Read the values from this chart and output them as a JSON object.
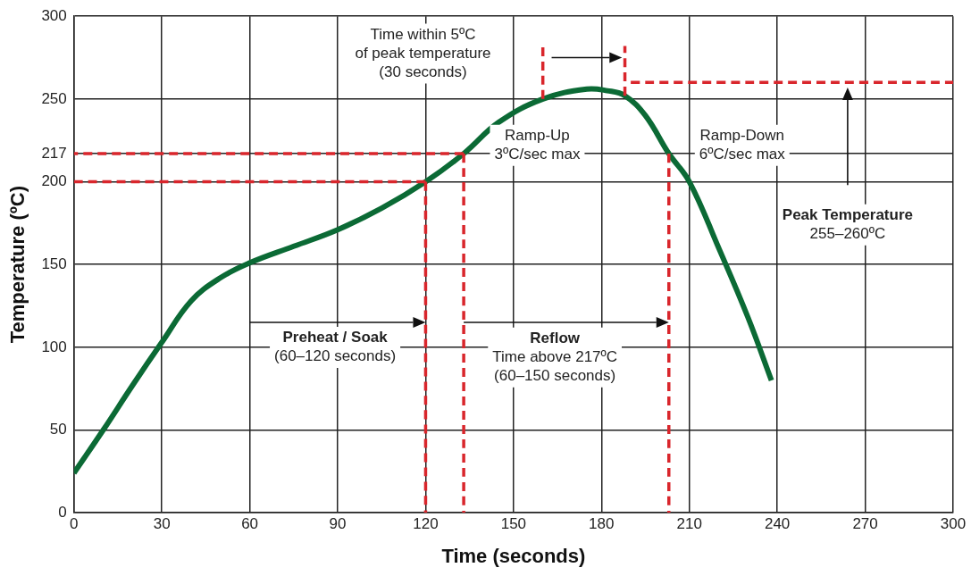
{
  "chart_data": {
    "type": "line",
    "xlabel": "Time (seconds)",
    "ylabel": "Temperature (ºC)",
    "xlim": [
      0,
      300
    ],
    "xticks": [
      0,
      30,
      60,
      90,
      120,
      150,
      180,
      210,
      240,
      270,
      300
    ],
    "ylim": [
      0,
      300
    ],
    "yticks": [
      0,
      50,
      100,
      150,
      200,
      217,
      250,
      300
    ],
    "grid": true,
    "legend": false,
    "marker": "none",
    "line_style": "solid",
    "series": [
      {
        "color": "#0b6a35",
        "x": [
          0,
          10,
          20,
          30,
          40,
          50,
          60,
          75,
          90,
          105,
          120,
          133,
          145,
          160,
          175,
          182,
          188,
          195,
          203,
          210,
          220,
          230,
          238
        ],
        "values": [
          24,
          50,
          77,
          103,
          128,
          142,
          151,
          161,
          171,
          184,
          200,
          217,
          236,
          250,
          256,
          255,
          252,
          240,
          217,
          200,
          160,
          118,
          80
        ]
      },
      {
        "color": "#d9262c",
        "line_style": "dashed",
        "x": [
          120,
          0
        ],
        "values": [
          200,
          200
        ]
      },
      {
        "color": "#d9262c",
        "line_style": "dashed",
        "x": [
          133,
          0
        ],
        "values": [
          217,
          217
        ]
      },
      {
        "color": "#d9262c",
        "line_style": "dashed",
        "x": [
          190,
          300
        ],
        "values": [
          260,
          260
        ]
      },
      {
        "color": "#d9262c",
        "line_style": "dashed",
        "x": [
          120,
          120
        ],
        "values": [
          200,
          0
        ]
      },
      {
        "color": "#d9262c",
        "line_style": "dashed",
        "x": [
          133,
          133
        ],
        "values": [
          217,
          0
        ]
      },
      {
        "color": "#d9262c",
        "line_style": "dashed",
        "x": [
          203,
          203
        ],
        "values": [
          217,
          0
        ]
      },
      {
        "color": "#d9262c",
        "line_style": "dashed",
        "x": [
          160,
          160
        ],
        "values": [
          250,
          282
        ]
      },
      {
        "color": "#d9262c",
        "line_style": "dashed",
        "x": [
          188,
          188
        ],
        "values": [
          252,
          282
        ]
      }
    ],
    "annotations": [
      "Time within 5ºC\nof peak temperature\n(30 seconds)",
      "Ramp-Up\n3ºC/sec max",
      "Ramp-Down\n6ºC/sec max",
      "Peak Temperature\n255–260ºC",
      "Preheat / Soak\n(60–120 seconds)",
      "Reflow\nTime above 217ºC\n(60–150 seconds)"
    ]
  }
}
